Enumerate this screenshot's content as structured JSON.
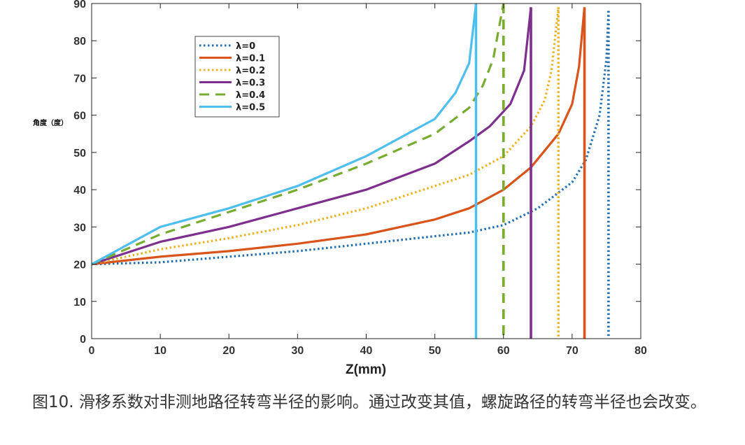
{
  "chart_data": {
    "type": "line",
    "ylabel": "角度（度）",
    "xlabel": "Z(mm)",
    "xlim": [
      0,
      80
    ],
    "ylim": [
      0,
      90
    ],
    "xticks": [
      "0",
      "10",
      "20",
      "30",
      "40",
      "50",
      "60",
      "70",
      "80"
    ],
    "yticks": [
      "0",
      "10",
      "20",
      "30",
      "40",
      "50",
      "60",
      "70",
      "80",
      "90"
    ],
    "legend_position": "top-left",
    "grid": false,
    "series": [
      {
        "name": "λ=0",
        "color": "#1f6fb2",
        "dash": "dotted",
        "x": [
          0,
          10,
          20,
          30,
          40,
          50,
          55,
          60,
          65,
          70,
          72,
          74,
          75,
          75.3
        ],
        "y": [
          20,
          20.5,
          22,
          23.5,
          25.5,
          27.5,
          28.5,
          30.5,
          35,
          42,
          48,
          60,
          75,
          88
        ]
      },
      {
        "name": "λ=0.1",
        "color": "#d9541a",
        "dash": "solid",
        "x": [
          0,
          10,
          20,
          30,
          40,
          50,
          55,
          60,
          64,
          68,
          70,
          71,
          71.8
        ],
        "y": [
          20,
          22,
          23.5,
          25.5,
          28,
          32,
          35,
          40,
          46,
          55,
          63,
          73,
          89
        ]
      },
      {
        "name": "λ=0.2",
        "color": "#edb120",
        "dash": "dotted",
        "x": [
          0,
          10,
          20,
          30,
          40,
          50,
          55,
          60,
          64,
          66,
          67,
          68
        ],
        "y": [
          20,
          24,
          27,
          30.5,
          35,
          41,
          44,
          49,
          57,
          64,
          72,
          89
        ]
      },
      {
        "name": "λ=0.3",
        "color": "#7e2f8e",
        "dash": "solid",
        "x": [
          0,
          10,
          20,
          30,
          40,
          50,
          55,
          58,
          61,
          63,
          64
        ],
        "y": [
          20,
          26,
          30,
          35,
          40,
          47,
          53,
          57,
          63,
          72,
          89
        ]
      },
      {
        "name": "λ=0.4",
        "color": "#77ac30",
        "dash": "dashed",
        "x": [
          0,
          10,
          20,
          30,
          40,
          50,
          55,
          57,
          58.5,
          59.5,
          60
        ],
        "y": [
          20,
          28,
          34,
          40,
          47,
          55,
          62,
          68,
          75,
          85,
          90
        ]
      },
      {
        "name": "λ=0.5",
        "color": "#4dbeee",
        "dash": "solid",
        "x": [
          0,
          10,
          20,
          30,
          40,
          50,
          53,
          55,
          56
        ],
        "y": [
          20,
          30,
          35,
          41,
          49,
          59,
          66,
          74,
          90
        ]
      }
    ],
    "vertical_lines": [
      {
        "series": "λ=0",
        "x": 75.3,
        "y_top": 88
      },
      {
        "series": "λ=0.1",
        "x": 71.8,
        "y_top": 89
      },
      {
        "series": "λ=0.2",
        "x": 68,
        "y_top": 89
      },
      {
        "series": "λ=0.3",
        "x": 64,
        "y_top": 89
      },
      {
        "series": "λ=0.4",
        "x": 60,
        "y_top": 90
      },
      {
        "series": "λ=0.5",
        "x": 56,
        "y_top": 90
      }
    ]
  },
  "caption": "图10. 滑移系数对非测地路径转弯半径的影响。通过改变其值，螺旋路径的转弯半径也会改变。"
}
